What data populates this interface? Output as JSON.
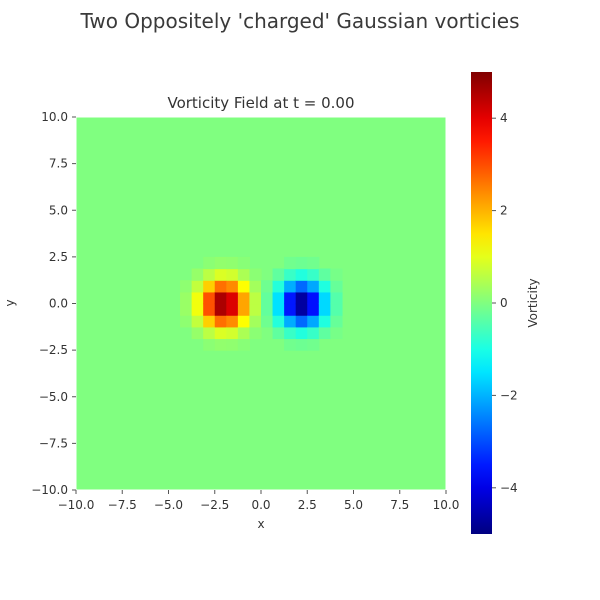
{
  "figure": {
    "suptitle": "Two Oppositely 'charged' Gaussian vorticies"
  },
  "chart_data": {
    "type": "heatmap",
    "title": "Vorticity Field at t = 0.00",
    "xlabel": "x",
    "ylabel": "y",
    "xlim": [
      -10.0,
      10.0
    ],
    "ylim": [
      -10.0,
      10.0
    ],
    "x_ticks": [
      "−10.0",
      "−7.5",
      "−5.0",
      "−2.5",
      "0.0",
      "2.5",
      "5.0",
      "7.5",
      "10.0"
    ],
    "x_tick_values": [
      -10,
      -7.5,
      -5,
      -2.5,
      0,
      2.5,
      5,
      7.5,
      10
    ],
    "y_ticks": [
      "−10.0",
      "−7.5",
      "−5.0",
      "−2.5",
      "0.0",
      "2.5",
      "5.0",
      "7.5",
      "10.0"
    ],
    "y_tick_values": [
      -10,
      -7.5,
      -5,
      -2.5,
      0,
      2.5,
      5,
      7.5,
      10
    ],
    "colormap": "jet",
    "background_value": 0,
    "grid_resolution": 32,
    "vortices": [
      {
        "x": -2.0,
        "y": 0.0,
        "peak": 5.0,
        "sigma": 0.85,
        "sign": "positive"
      },
      {
        "x": 2.2,
        "y": 0.0,
        "peak": -5.0,
        "sigma": 0.85,
        "sign": "negative"
      }
    ],
    "colorbar": {
      "label": "Vorticity",
      "vmin": -5.0,
      "vmax": 5.0,
      "ticks": [
        "−4",
        "−2",
        "0",
        "2",
        "4"
      ],
      "tick_values": [
        -4,
        -2,
        0,
        2,
        4
      ]
    },
    "grid": false
  }
}
